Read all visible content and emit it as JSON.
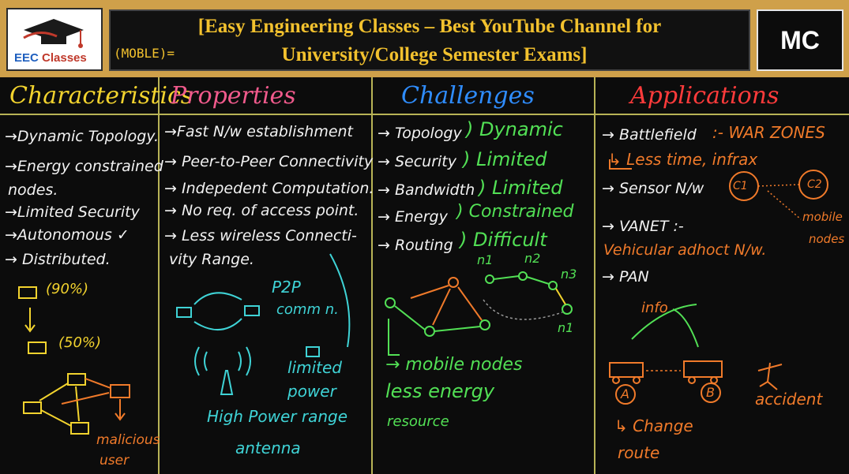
{
  "header": {
    "logo_text_a": "EEC",
    "logo_text_b": " Classes",
    "title_line1": "[Easy Engineering Classes – Best YouTube Channel for",
    "title_line2": "University/College Semester Exams]",
    "subject_badge": "MC",
    "side_note": "(MOBLE)="
  },
  "columns": {
    "characteristics": {
      "heading": "Characteristics",
      "items": [
        "→Dynamic Topology.",
        "→Energy constrained",
        "nodes.",
        "→Limited Security",
        "→Autonomous ✓",
        "→ Distributed."
      ],
      "sketch_labels": [
        "(90%)",
        "(50%)",
        "malicious",
        "user"
      ]
    },
    "properties": {
      "heading": "Properties",
      "items": [
        "→Fast N/w establishment",
        "→ Peer-to-Peer Connectivity",
        "→ Indepedent Computation.",
        "→ No req. of access point.",
        "→ Less wireless Connecti-",
        "vity Range."
      ],
      "sketch_labels": [
        "P2P",
        "comm n.",
        "limited",
        "power",
        "High Power range",
        "antenna"
      ]
    },
    "challenges": {
      "heading": "Challenges",
      "rows": [
        {
          "label": "→ Topology",
          "value": ") Dynamic"
        },
        {
          "label": "→ Security",
          "value": ") Limited"
        },
        {
          "label": "→ Bandwidth",
          "value": ") Limited"
        },
        {
          "label": "→ Energy",
          "value": ") Constrained"
        },
        {
          "label": "→ Routing",
          "value": ") Difficult"
        }
      ],
      "sketch_labels": [
        "n1",
        "n2",
        "n3",
        "n1",
        "→ mobile nodes",
        "less energy",
        "resource"
      ]
    },
    "applications": {
      "heading": "Applications",
      "items": [
        "→ Battlefield",
        ":- WAR ZONES",
        "↳ Less time, infrax",
        "→ Sensor N/w",
        "→ VANET :-",
        "Vehicular adhoct N/w.",
        "→ PAN"
      ],
      "sketch_labels": [
        "C1",
        "C2",
        "mobile",
        "nodes",
        "info",
        "A",
        "B",
        "accident",
        "↳ Change",
        "route"
      ]
    }
  },
  "colors": {
    "board": "#0c0c0c",
    "frame": "#cfa04a",
    "characteristics": "#f2d32e",
    "properties": "#f05a8c",
    "challenges": "#2f8dff",
    "applications": "#ff3b3b",
    "divider": "#b8b356"
  }
}
